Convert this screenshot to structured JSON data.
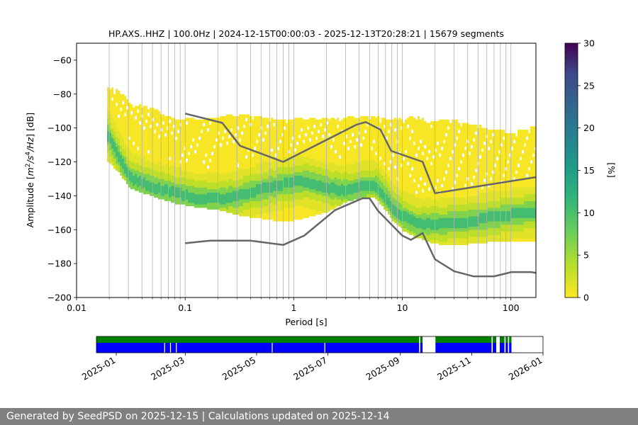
{
  "chart_data": {
    "type": "heatmap",
    "title": "HP.AXS..HHZ | 100.0Hz | 2024-12-15T00:00:03 - 2025-12-13T20:28:21 | 15679 segments",
    "xlabel": "Period [s]",
    "ylabel_parts": [
      "Amplitude [",
      "m",
      "2",
      "/",
      "s",
      "4",
      "/",
      "Hz",
      "] [dB]"
    ],
    "x_scale": "log",
    "xlim": [
      0.01,
      170
    ],
    "ylim": [
      -200,
      -50
    ],
    "x_ticks": [
      0.01,
      0.1,
      1,
      10,
      100
    ],
    "x_tick_labels": [
      "0.01",
      "0.1",
      "1",
      "10",
      "100"
    ],
    "y_ticks": [
      -200,
      -180,
      -160,
      -140,
      -120,
      -100,
      -80,
      -60
    ],
    "y_tick_labels": [
      "−200",
      "−180",
      "−160",
      "−140",
      "−120",
      "−100",
      "−80",
      "−60"
    ],
    "grid": "x-major-and-minor",
    "colorbar": {
      "label": "[%]",
      "range": [
        0,
        30
      ],
      "ticks": [
        0,
        5,
        10,
        15,
        20,
        25,
        30
      ],
      "tick_labels": [
        "0",
        "5",
        "10",
        "15",
        "20",
        "25",
        "30"
      ],
      "colormap": "viridis_r"
    },
    "psd_envelope": {
      "description": "probability density of power spectral density, percent per bin",
      "period": [
        0.019,
        0.025,
        0.03,
        0.05,
        0.08,
        0.12,
        0.2,
        0.3,
        0.5,
        0.8,
        1.2,
        2,
        3,
        4.5,
        5.5,
        6.5,
        8,
        10,
        13,
        18,
        25,
        40,
        60,
        100,
        170
      ],
      "max_db": [
        -76,
        -80,
        -86,
        -90,
        -96,
        -96,
        -94,
        -93,
        -94,
        -96,
        -95,
        -96,
        -95,
        -94,
        -94,
        -96,
        -96,
        -96,
        -94,
        -98,
        -96,
        -98,
        -101,
        -104,
        -100
      ],
      "min_db": [
        -120,
        -128,
        -136,
        -141,
        -145,
        -147,
        -149,
        -152,
        -154,
        -156,
        -154,
        -150,
        -144,
        -141,
        -142,
        -147,
        -155,
        -161,
        -165,
        -168,
        -170,
        -169,
        -168,
        -167,
        -167
      ],
      "mode_db": [
        -105,
        -120,
        -130,
        -136,
        -139,
        -142,
        -143,
        -141,
        -137,
        -134,
        -132,
        -136,
        -138,
        -135,
        -135,
        -140,
        -148,
        -153,
        -157,
        -158,
        -157,
        -156,
        -154,
        -152,
        -150
      ]
    },
    "series": [
      {
        "name": "",
        "color": "#666666",
        "x": [
          0.1,
          0.22,
          0.32,
          0.8,
          3.8,
          4.6,
          6.3,
          7.9,
          15.4,
          20,
          170
        ],
        "y": [
          -91.5,
          -97,
          -110.5,
          -120,
          -98,
          -96.5,
          -101,
          -113.5,
          -120,
          -138.5,
          -129
        ]
      },
      {
        "name": "",
        "color": "#666666",
        "x": [
          0.1,
          0.17,
          0.4,
          0.8,
          1.25,
          2.4,
          4.3,
          5,
          6,
          10,
          12,
          15.4,
          20,
          30,
          45,
          70,
          101,
          154,
          170
        ],
        "y": [
          -168,
          -166.5,
          -166.5,
          -169,
          -163.5,
          -148.5,
          -141.5,
          -141.5,
          -149,
          -163.5,
          -166,
          -162,
          -177.5,
          -184.5,
          -187.5,
          -187.5,
          -185,
          -185,
          -185.5
        ]
      }
    ],
    "availability": {
      "xlim": [
        "2024-12-15",
        "2026-01-01"
      ],
      "x_ticks": [
        "2025-01",
        "2025-03",
        "2025-05",
        "2025-07",
        "2025-09",
        "2025-11",
        "2026-01"
      ],
      "colors": {
        "available": "#008000",
        "used": "#0000ff"
      },
      "segments": [
        [
          "2024-12-15",
          "2025-09-17"
        ],
        [
          "2025-09-18",
          "2025-09-20"
        ],
        [
          "2025-10-01",
          "2025-11-18"
        ],
        [
          "2025-11-19",
          "2025-11-22"
        ],
        [
          "2025-11-25",
          "2025-11-29"
        ],
        [
          "2025-11-30",
          "2025-12-02"
        ],
        [
          "2025-12-03",
          "2025-12-05"
        ]
      ],
      "gaps": [
        "2025-02-11",
        "2025-02-16",
        "2025-02-21",
        "2025-05-14",
        "2025-06-28"
      ]
    }
  },
  "footer": {
    "text": "Generated by SeedPSD on 2025-12-15 | Calculations updated on 2025-12-14"
  }
}
